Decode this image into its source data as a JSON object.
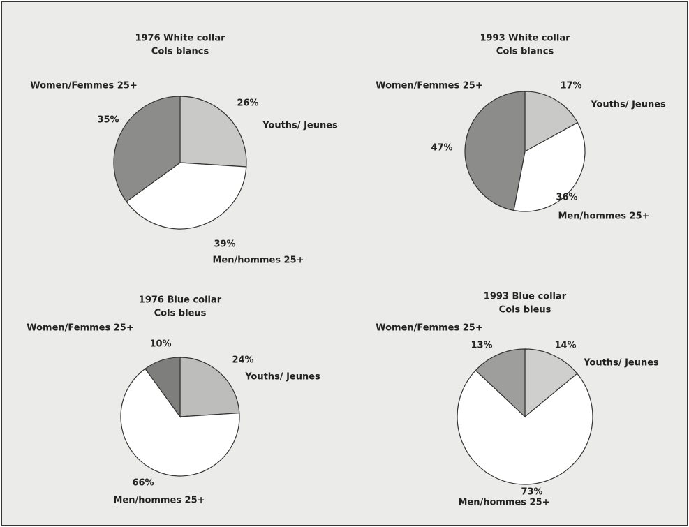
{
  "chart_data": [
    {
      "type": "pie",
      "title": "1976 White collar",
      "subtitle": "Cols blancs",
      "categories": [
        "Youths/ Jeunes",
        "Men/hommes 25+",
        "Women/Femmes 25+"
      ],
      "values": [
        26,
        39,
        35
      ],
      "value_labels": [
        "26%",
        "39%",
        "35%"
      ],
      "colors": [
        "#c9c9c7",
        "#ffffff",
        "#8c8c8a"
      ]
    },
    {
      "type": "pie",
      "title": "1993 White collar",
      "subtitle": "Cols blancs",
      "categories": [
        "Youths/ Jeunes",
        "Men/hommes 25+",
        "Women/Femmes 25+"
      ],
      "values": [
        17,
        36,
        47
      ],
      "value_labels": [
        "17%",
        "36%",
        "47%"
      ],
      "colors": [
        "#c9c9c7",
        "#ffffff",
        "#8c8c8a"
      ]
    },
    {
      "type": "pie",
      "title": "1976 Blue collar",
      "subtitle": "Cols bleus",
      "categories": [
        "Youths/ Jeunes",
        "Men/hommes 25+",
        "Women/Femmes 25+"
      ],
      "values": [
        24,
        66,
        10
      ],
      "value_labels": [
        "24%",
        "66%",
        "10%"
      ],
      "colors": [
        "#bdbdbb",
        "#ffffff",
        "#7e7e7c"
      ]
    },
    {
      "type": "pie",
      "title": "1993 Blue collar",
      "subtitle": "Cols bleus",
      "categories": [
        "Youths/ Jeunes",
        "Men/hommes 25+",
        "Women/Femmes 25+"
      ],
      "values": [
        14,
        73,
        13
      ],
      "value_labels": [
        "14%",
        "73%",
        "13%"
      ],
      "colors": [
        "#cfcfcd",
        "#ffffff",
        "#9e9e9c"
      ]
    }
  ]
}
